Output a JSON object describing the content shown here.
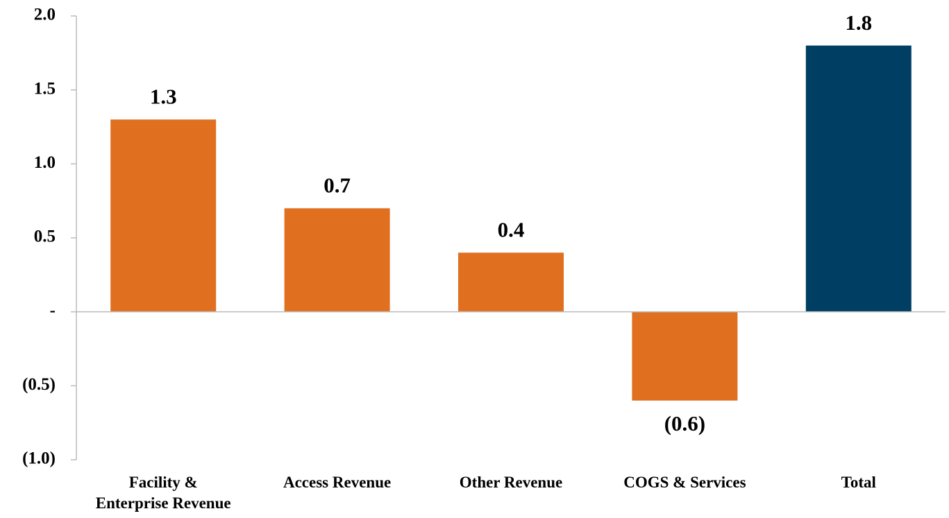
{
  "chart_data": {
    "type": "bar",
    "categories": [
      "Facility &\nEnterprise Revenue",
      "Access Revenue",
      "Other Revenue",
      "COGS & Services",
      "Total"
    ],
    "values": [
      1.3,
      0.7,
      0.4,
      -0.6,
      1.8
    ],
    "value_labels": [
      "1.3",
      "0.7",
      "0.4",
      "(0.6)",
      "1.8"
    ],
    "colors": [
      "#e07020",
      "#e07020",
      "#e07020",
      "#e07020",
      "#003f63"
    ],
    "ylim": [
      -1,
      2
    ],
    "yticks": [
      {
        "value": -1,
        "label": "(1.0)"
      },
      {
        "value": -0.5,
        "label": "(0.5)"
      },
      {
        "value": 0,
        "label": "-"
      },
      {
        "value": 0.5,
        "label": "0.5"
      },
      {
        "value": 1,
        "label": "1.0"
      },
      {
        "value": 1.5,
        "label": "1.5"
      },
      {
        "value": 2,
        "label": "2.0"
      }
    ]
  }
}
